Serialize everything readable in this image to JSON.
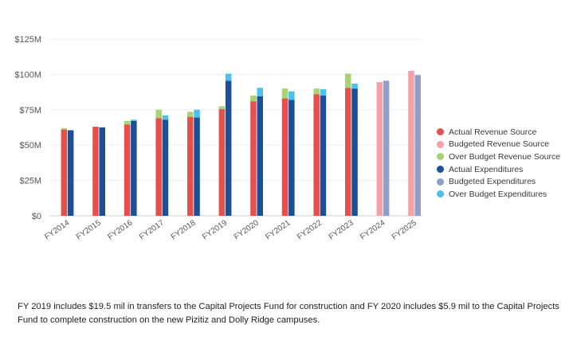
{
  "chart_data": {
    "type": "bar",
    "stacked_within_group": true,
    "categories": [
      "FY2014",
      "FY2015",
      "FY2016",
      "FY2017",
      "FY2018",
      "FY2019",
      "FY2020",
      "FY2021",
      "FY2022",
      "FY2023",
      "FY2024",
      "FY2025"
    ],
    "y_axis": {
      "min": 0,
      "max": 125,
      "ticks": [
        0,
        25,
        50,
        75,
        100,
        125
      ],
      "tick_labels": [
        "$0",
        "$25M",
        "$50M",
        "$75M",
        "$100M",
        "$125M"
      ],
      "unit": "$M"
    },
    "series": [
      {
        "name": "Actual Revenue Source",
        "group": "revenue",
        "color": "#e5504f",
        "values": [
          61,
          63,
          64.5,
          69,
          70,
          75.5,
          81,
          83,
          86,
          90.5,
          null,
          null
        ]
      },
      {
        "name": "Budgeted Revenue Source",
        "group": "revenue",
        "color": "#f4a0a6",
        "values": [
          null,
          null,
          null,
          null,
          null,
          null,
          null,
          null,
          null,
          null,
          94.5,
          102.5
        ]
      },
      {
        "name": "Over Budget Revenue Source",
        "group": "revenue",
        "color": "#a9d372",
        "values": [
          1,
          0,
          2.5,
          6,
          3.5,
          2,
          4,
          7,
          4,
          10,
          0,
          0
        ]
      },
      {
        "name": "Actual Expenditures",
        "group": "expenditures",
        "color": "#1c4f93",
        "values": [
          60.5,
          62.5,
          67,
          68,
          69.5,
          95.5,
          84.5,
          82,
          85,
          90,
          null,
          null
        ]
      },
      {
        "name": "Budgeted Expenditures",
        "group": "expenditures",
        "color": "#8f9fc8",
        "values": [
          null,
          null,
          null,
          null,
          null,
          null,
          null,
          null,
          null,
          null,
          95.5,
          99.5
        ]
      },
      {
        "name": "Over Budget Expenditures",
        "group": "expenditures",
        "color": "#4dc0ec",
        "values": [
          0,
          0,
          1,
          3,
          5.5,
          5,
          6,
          6,
          4.5,
          3.5,
          0,
          0
        ]
      }
    ],
    "legend_position": "right"
  },
  "footnote": "FY 2019 includes $19.5 mil in transfers to the Capital Projects Fund for construction and FY 2020 includes $5.9 mil to the Capital Projects Fund to complete construction on the new Pizitiz and Dolly Ridge campuses."
}
